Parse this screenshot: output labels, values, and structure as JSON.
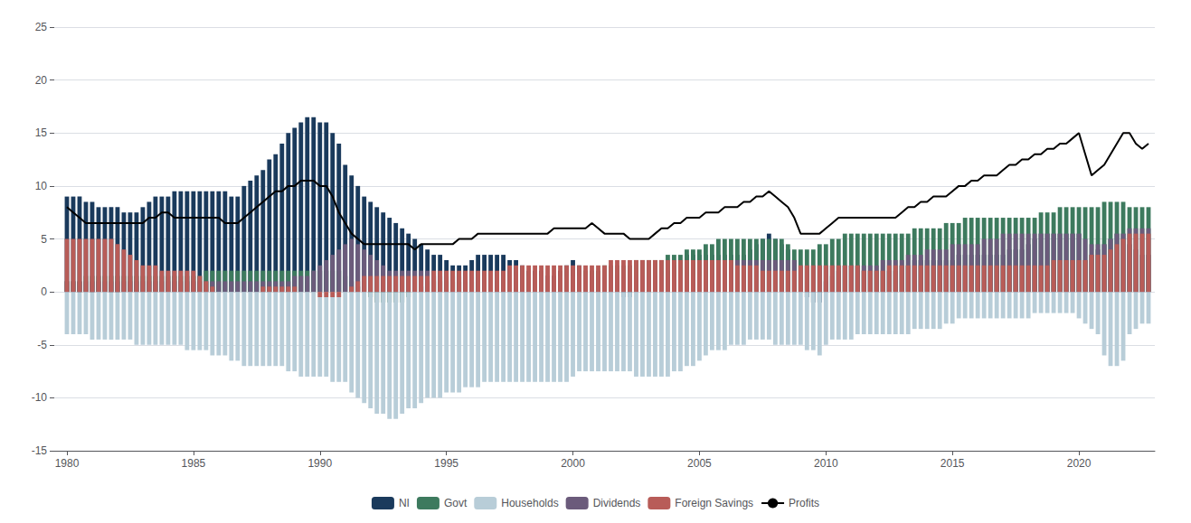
{
  "chart_data": {
    "type": "bar",
    "stacked": true,
    "grid": true,
    "legend": "bottom",
    "x": [
      1980.0,
      1980.25,
      1980.5,
      1980.75,
      1981.0,
      1981.25,
      1981.5,
      1981.75,
      1982.0,
      1982.25,
      1982.5,
      1982.75,
      1983.0,
      1983.25,
      1983.5,
      1983.75,
      1984.0,
      1984.25,
      1984.5,
      1984.75,
      1985.0,
      1985.25,
      1985.5,
      1985.75,
      1986.0,
      1986.25,
      1986.5,
      1986.75,
      1987.0,
      1987.25,
      1987.5,
      1987.75,
      1988.0,
      1988.25,
      1988.5,
      1988.75,
      1989.0,
      1989.25,
      1989.5,
      1989.75,
      1990.0,
      1990.25,
      1990.5,
      1990.75,
      1991.0,
      1991.25,
      1991.5,
      1991.75,
      1992.0,
      1992.25,
      1992.5,
      1992.75,
      1993.0,
      1993.25,
      1993.5,
      1993.75,
      1994.0,
      1994.25,
      1994.5,
      1994.75,
      1995.0,
      1995.25,
      1995.5,
      1995.75,
      1996.0,
      1996.25,
      1996.5,
      1996.75,
      1997.0,
      1997.25,
      1997.5,
      1997.75,
      1998.0,
      1998.25,
      1998.5,
      1998.75,
      1999.0,
      1999.25,
      1999.5,
      1999.75,
      2000.0,
      2000.25,
      2000.5,
      2000.75,
      2001.0,
      2001.25,
      2001.5,
      2001.75,
      2002.0,
      2002.25,
      2002.5,
      2002.75,
      2003.0,
      2003.25,
      2003.5,
      2003.75,
      2004.0,
      2004.25,
      2004.5,
      2004.75,
      2005.0,
      2005.25,
      2005.5,
      2005.75,
      2006.0,
      2006.25,
      2006.5,
      2006.75,
      2007.0,
      2007.25,
      2007.5,
      2007.75,
      2008.0,
      2008.25,
      2008.5,
      2008.75,
      2009.0,
      2009.25,
      2009.5,
      2009.75,
      2010.0,
      2010.25,
      2010.5,
      2010.75,
      2011.0,
      2011.25,
      2011.5,
      2011.75,
      2012.0,
      2012.25,
      2012.5,
      2012.75,
      2013.0,
      2013.25,
      2013.5,
      2013.75,
      2014.0,
      2014.25,
      2014.5,
      2014.75,
      2015.0,
      2015.25,
      2015.5,
      2015.75,
      2016.0,
      2016.25,
      2016.5,
      2016.75,
      2017.0,
      2017.25,
      2017.5,
      2017.75,
      2018.0,
      2018.25,
      2018.5,
      2018.75,
      2019.0,
      2019.25,
      2019.5,
      2019.75,
      2020.0,
      2020.25,
      2020.5,
      2020.75,
      2021.0,
      2021.25,
      2021.5,
      2021.75,
      2022.0,
      2022.25,
      2022.5,
      2022.75
    ],
    "series": [
      {
        "name": "NI",
        "type": "bar",
        "color": "#1a3a5c",
        "values": [
          9.0,
          9.0,
          9.0,
          8.5,
          8.5,
          8.0,
          8.0,
          8.0,
          8.0,
          7.5,
          7.5,
          7.5,
          8.0,
          8.5,
          9.0,
          9.0,
          9.0,
          9.5,
          9.5,
          9.5,
          9.5,
          9.5,
          9.5,
          9.5,
          9.5,
          9.5,
          9.0,
          9.0,
          10.0,
          10.5,
          11.0,
          11.5,
          12.5,
          13.0,
          14.0,
          15.0,
          15.5,
          16.0,
          16.5,
          16.5,
          16.0,
          16.0,
          15.0,
          14.0,
          12.0,
          11.0,
          10.0,
          9.0,
          8.5,
          8.0,
          7.5,
          7.0,
          6.5,
          6.0,
          5.5,
          5.0,
          4.5,
          4.0,
          3.5,
          3.5,
          3.0,
          2.5,
          2.5,
          2.5,
          3.0,
          3.5,
          3.5,
          3.5,
          3.5,
          3.5,
          3.0,
          3.0,
          2.5,
          2.0,
          2.0,
          2.0,
          1.5,
          1.5,
          2.0,
          2.5,
          3.0,
          2.5,
          2.0,
          2.0,
          1.5,
          1.0,
          0.5,
          0.0,
          -0.5,
          -0.5,
          0.0,
          0.5,
          1.0,
          1.5,
          2.0,
          2.0,
          2.5,
          3.0,
          3.5,
          3.5,
          3.5,
          3.5,
          3.5,
          3.5,
          3.5,
          3.5,
          3.5,
          3.5,
          4.0,
          4.5,
          5.0,
          5.5,
          5.0,
          4.5,
          4.0,
          3.0,
          0.0,
          -0.5,
          -1.0,
          -1.0,
          1.0,
          1.5,
          2.0,
          2.5,
          2.5,
          2.5,
          2.0,
          2.0,
          2.0,
          2.0,
          2.0,
          2.0,
          2.5,
          2.5,
          3.0,
          3.0,
          3.0,
          3.0,
          3.0,
          3.0,
          3.0,
          3.5,
          3.5,
          3.5,
          3.5,
          3.5,
          3.5,
          3.5,
          3.5,
          4.0,
          4.0,
          4.0,
          4.5,
          5.0,
          5.5,
          5.5,
          5.5,
          5.5,
          5.5,
          5.5,
          5.5,
          3.0,
          3.5,
          4.0,
          4.5,
          5.0,
          5.5,
          5.5,
          4.5,
          4.0,
          3.5,
          3.5
        ]
      },
      {
        "name": "Govt",
        "type": "bar",
        "color": "#3d7a5e",
        "values": [
          1.0,
          1.0,
          1.0,
          1.5,
          1.5,
          1.5,
          1.5,
          1.5,
          1.5,
          1.5,
          1.5,
          1.5,
          1.5,
          1.5,
          1.5,
          1.5,
          1.5,
          1.5,
          1.5,
          1.5,
          1.5,
          1.5,
          2.0,
          2.0,
          2.0,
          2.0,
          2.0,
          2.0,
          2.0,
          2.0,
          2.0,
          2.0,
          2.0,
          2.0,
          2.0,
          2.0,
          2.0,
          2.0,
          2.0,
          2.0,
          2.0,
          2.0,
          2.0,
          2.0,
          1.5,
          1.0,
          0.5,
          0.0,
          -0.5,
          -1.0,
          -1.0,
          -1.0,
          -1.0,
          -1.0,
          -0.5,
          0.0,
          0.5,
          1.0,
          1.0,
          1.0,
          1.0,
          1.0,
          1.0,
          1.0,
          1.0,
          1.0,
          1.0,
          1.0,
          1.0,
          1.0,
          1.0,
          1.0,
          1.0,
          1.5,
          1.5,
          1.5,
          1.5,
          1.5,
          1.5,
          1.5,
          1.5,
          1.5,
          2.0,
          2.0,
          2.0,
          2.5,
          2.5,
          2.5,
          2.5,
          2.5,
          3.0,
          3.0,
          3.0,
          3.0,
          3.0,
          3.5,
          3.5,
          3.5,
          4.0,
          4.0,
          4.0,
          4.5,
          4.5,
          5.0,
          5.0,
          5.0,
          5.0,
          5.0,
          5.0,
          5.0,
          5.0,
          5.0,
          5.0,
          5.0,
          4.5,
          4.0,
          4.0,
          4.0,
          4.0,
          4.5,
          4.5,
          5.0,
          5.0,
          5.5,
          5.5,
          5.5,
          5.5,
          5.5,
          5.5,
          5.5,
          5.5,
          5.5,
          5.5,
          5.5,
          6.0,
          6.0,
          6.0,
          6.0,
          6.0,
          6.5,
          6.5,
          6.5,
          7.0,
          7.0,
          7.0,
          7.0,
          7.0,
          7.0,
          7.0,
          7.0,
          7.0,
          7.0,
          7.0,
          7.0,
          7.5,
          7.5,
          7.5,
          8.0,
          8.0,
          8.0,
          8.0,
          8.0,
          8.0,
          8.0,
          8.5,
          8.5,
          8.5,
          8.5,
          8.0,
          8.0,
          8.0,
          8.0
        ]
      },
      {
        "name": "Households",
        "type": "bar",
        "color": "#b8cdd8",
        "values": [
          -4.0,
          -4.0,
          -4.0,
          -4.0,
          -4.5,
          -4.5,
          -4.5,
          -4.5,
          -4.5,
          -4.5,
          -4.5,
          -5.0,
          -5.0,
          -5.0,
          -5.0,
          -5.0,
          -5.0,
          -5.0,
          -5.0,
          -5.5,
          -5.5,
          -5.5,
          -5.5,
          -6.0,
          -6.0,
          -6.0,
          -6.5,
          -6.5,
          -7.0,
          -7.0,
          -7.0,
          -7.0,
          -7.0,
          -7.0,
          -7.0,
          -7.5,
          -7.5,
          -8.0,
          -8.0,
          -8.0,
          -8.0,
          -8.0,
          -8.5,
          -8.5,
          -8.5,
          -9.5,
          -10.0,
          -10.5,
          -11.0,
          -11.5,
          -11.5,
          -12.0,
          -12.0,
          -11.5,
          -11.0,
          -11.0,
          -10.5,
          -10.0,
          -10.0,
          -10.0,
          -9.5,
          -9.5,
          -9.5,
          -9.0,
          -9.0,
          -9.0,
          -8.5,
          -8.5,
          -8.5,
          -8.5,
          -8.5,
          -8.5,
          -8.5,
          -8.5,
          -8.5,
          -8.5,
          -8.5,
          -8.5,
          -8.5,
          -8.5,
          -8.0,
          -7.5,
          -7.5,
          -7.5,
          -7.5,
          -7.5,
          -7.5,
          -7.5,
          -7.5,
          -7.5,
          -8.0,
          -8.0,
          -8.0,
          -8.0,
          -8.0,
          -8.0,
          -7.5,
          -7.5,
          -7.0,
          -7.0,
          -6.5,
          -6.0,
          -5.5,
          -5.5,
          -5.5,
          -5.0,
          -5.0,
          -5.0,
          -4.5,
          -4.5,
          -4.5,
          -4.5,
          -5.0,
          -5.0,
          -5.0,
          -5.0,
          -5.0,
          -5.5,
          -5.5,
          -6.0,
          -5.0,
          -4.5,
          -4.5,
          -4.5,
          -4.5,
          -4.0,
          -4.0,
          -4.0,
          -4.0,
          -4.0,
          -4.0,
          -4.0,
          -4.0,
          -4.0,
          -3.5,
          -3.5,
          -3.5,
          -3.5,
          -3.5,
          -3.0,
          -3.0,
          -2.5,
          -2.5,
          -2.5,
          -2.5,
          -2.5,
          -2.5,
          -2.5,
          -2.5,
          -2.5,
          -2.5,
          -2.5,
          -2.5,
          -2.0,
          -2.0,
          -2.0,
          -2.0,
          -2.0,
          -2.0,
          -2.0,
          -2.5,
          -3.0,
          -3.5,
          -4.0,
          -6.0,
          -7.0,
          -7.0,
          -6.5,
          -4.0,
          -3.5,
          -3.0,
          -3.0
        ]
      },
      {
        "name": "Dividends",
        "type": "bar",
        "color": "#6b5b7b",
        "values": [
          1.0,
          1.0,
          1.0,
          1.0,
          1.0,
          1.0,
          1.0,
          1.0,
          1.0,
          1.0,
          1.0,
          1.0,
          1.0,
          1.0,
          1.0,
          1.0,
          1.0,
          1.0,
          1.0,
          1.0,
          1.0,
          1.0,
          1.0,
          1.0,
          1.0,
          1.0,
          1.0,
          1.0,
          1.0,
          1.0,
          1.0,
          1.0,
          1.0,
          1.0,
          1.0,
          1.0,
          1.5,
          1.5,
          1.5,
          2.0,
          2.5,
          3.0,
          3.5,
          4.0,
          4.5,
          5.0,
          4.5,
          4.0,
          3.5,
          3.0,
          2.5,
          2.0,
          2.0,
          2.0,
          2.0,
          2.0,
          2.0,
          2.0,
          1.5,
          1.5,
          1.5,
          1.5,
          1.5,
          1.5,
          1.5,
          1.5,
          1.5,
          1.5,
          1.5,
          1.5,
          1.5,
          1.5,
          1.5,
          1.5,
          1.5,
          1.5,
          1.5,
          1.5,
          1.5,
          1.5,
          1.5,
          1.5,
          1.5,
          1.5,
          1.5,
          1.5,
          1.5,
          1.5,
          1.5,
          1.5,
          1.5,
          1.5,
          1.5,
          1.5,
          1.5,
          1.5,
          1.5,
          1.5,
          1.5,
          1.5,
          1.5,
          1.5,
          2.0,
          2.0,
          2.5,
          2.5,
          3.0,
          3.0,
          3.0,
          3.0,
          3.0,
          3.0,
          3.0,
          3.0,
          3.0,
          3.0,
          2.5,
          2.5,
          2.5,
          2.5,
          2.5,
          2.5,
          2.5,
          2.5,
          2.5,
          2.5,
          2.5,
          2.5,
          2.5,
          3.0,
          3.0,
          3.0,
          3.0,
          3.5,
          3.5,
          3.5,
          4.0,
          4.0,
          4.0,
          4.0,
          4.5,
          4.5,
          4.5,
          4.5,
          4.5,
          5.0,
          5.0,
          5.0,
          5.5,
          5.5,
          5.5,
          5.5,
          5.5,
          5.5,
          5.5,
          5.5,
          5.5,
          5.5,
          5.5,
          5.5,
          5.5,
          5.0,
          4.5,
          4.5,
          4.5,
          5.0,
          5.5,
          5.5,
          6.0,
          6.0,
          6.0,
          6.0
        ]
      },
      {
        "name": "Foreign Savings",
        "type": "bar",
        "color": "#b85c58",
        "values": [
          5.0,
          5.0,
          5.0,
          5.0,
          5.0,
          5.0,
          5.0,
          5.0,
          4.5,
          4.0,
          3.5,
          3.0,
          2.5,
          2.5,
          2.5,
          2.0,
          2.0,
          2.0,
          2.0,
          2.0,
          2.0,
          1.5,
          1.0,
          0.5,
          0.0,
          0.0,
          0.0,
          0.0,
          0.0,
          0.0,
          0.0,
          0.5,
          0.5,
          0.5,
          0.5,
          0.5,
          0.5,
          0.0,
          0.0,
          0.0,
          -0.5,
          -0.5,
          -0.5,
          -0.5,
          0.0,
          0.5,
          1.0,
          1.5,
          1.5,
          1.5,
          1.5,
          1.5,
          1.5,
          1.5,
          1.5,
          1.5,
          1.5,
          1.5,
          2.0,
          2.0,
          2.0,
          2.0,
          2.0,
          2.0,
          2.0,
          2.0,
          2.0,
          2.0,
          2.0,
          2.0,
          2.5,
          2.5,
          2.5,
          2.5,
          2.5,
          2.5,
          2.5,
          2.5,
          2.5,
          2.5,
          2.5,
          2.5,
          2.5,
          2.5,
          2.5,
          2.5,
          3.0,
          3.0,
          3.0,
          3.0,
          3.0,
          3.0,
          3.0,
          3.0,
          3.0,
          3.0,
          3.0,
          3.0,
          3.0,
          3.0,
          3.0,
          3.0,
          3.0,
          3.0,
          3.0,
          3.0,
          2.5,
          2.5,
          2.5,
          2.5,
          2.0,
          2.0,
          2.0,
          2.0,
          2.0,
          2.0,
          2.5,
          2.5,
          2.5,
          2.5,
          2.5,
          2.5,
          2.5,
          2.5,
          2.5,
          2.5,
          2.0,
          2.0,
          2.0,
          2.0,
          2.5,
          2.5,
          2.5,
          2.5,
          2.5,
          2.5,
          2.5,
          2.5,
          2.5,
          2.5,
          2.5,
          2.5,
          2.5,
          2.5,
          2.5,
          2.5,
          2.5,
          2.5,
          2.5,
          2.5,
          2.5,
          2.5,
          2.5,
          2.5,
          2.5,
          2.5,
          3.0,
          3.0,
          3.0,
          3.0,
          3.0,
          3.0,
          3.5,
          3.5,
          3.5,
          4.0,
          4.5,
          5.0,
          5.5,
          5.5,
          5.5,
          5.5
        ]
      },
      {
        "name": "Profits",
        "type": "line",
        "color": "#000000",
        "values": [
          8.0,
          7.5,
          7.0,
          6.5,
          6.5,
          6.5,
          6.5,
          6.5,
          6.5,
          6.5,
          6.5,
          6.5,
          6.5,
          7.0,
          7.0,
          7.5,
          7.5,
          7.0,
          7.0,
          7.0,
          7.0,
          7.0,
          7.0,
          7.0,
          7.0,
          6.5,
          6.5,
          6.5,
          7.0,
          7.5,
          8.0,
          8.5,
          9.0,
          9.5,
          9.5,
          10.0,
          10.0,
          10.5,
          10.5,
          10.5,
          10.0,
          10.0,
          9.0,
          7.5,
          6.5,
          5.5,
          5.0,
          4.5,
          4.5,
          4.5,
          4.5,
          4.5,
          4.5,
          4.5,
          4.5,
          4.0,
          4.5,
          4.5,
          4.5,
          4.5,
          4.5,
          4.5,
          5.0,
          5.0,
          5.0,
          5.5,
          5.5,
          5.5,
          5.5,
          5.5,
          5.5,
          5.5,
          5.5,
          5.5,
          5.5,
          5.5,
          5.5,
          6.0,
          6.0,
          6.0,
          6.0,
          6.0,
          6.0,
          6.5,
          6.0,
          5.5,
          5.5,
          5.5,
          5.5,
          5.0,
          5.0,
          5.0,
          5.0,
          5.5,
          6.0,
          6.0,
          6.5,
          6.5,
          7.0,
          7.0,
          7.0,
          7.5,
          7.5,
          7.5,
          8.0,
          8.0,
          8.0,
          8.5,
          8.5,
          9.0,
          9.0,
          9.5,
          9.0,
          8.5,
          8.0,
          7.0,
          5.5,
          5.5,
          5.5,
          5.5,
          6.0,
          6.5,
          7.0,
          7.0,
          7.0,
          7.0,
          7.0,
          7.0,
          7.0,
          7.0,
          7.0,
          7.0,
          7.5,
          8.0,
          8.0,
          8.5,
          8.5,
          9.0,
          9.0,
          9.0,
          9.5,
          10.0,
          10.0,
          10.5,
          10.5,
          11.0,
          11.0,
          11.0,
          11.5,
          12.0,
          12.0,
          12.5,
          12.5,
          13.0,
          13.0,
          13.5,
          13.5,
          14.0,
          14.0,
          14.5,
          15.0,
          13.0,
          11.0,
          11.5,
          12.0,
          13.0,
          14.0,
          15.0,
          15.0,
          14.0,
          13.5,
          14.0
        ]
      }
    ],
    "xlim": [
      1979.5,
      2023.0
    ],
    "xticks": [
      1980,
      1985,
      1990,
      1995,
      2000,
      2005,
      2010,
      2015,
      2020
    ],
    "ylim": [
      -15,
      25
    ],
    "yticks": [
      -15,
      -10,
      -5,
      0,
      5,
      10,
      15,
      20,
      25
    ]
  }
}
